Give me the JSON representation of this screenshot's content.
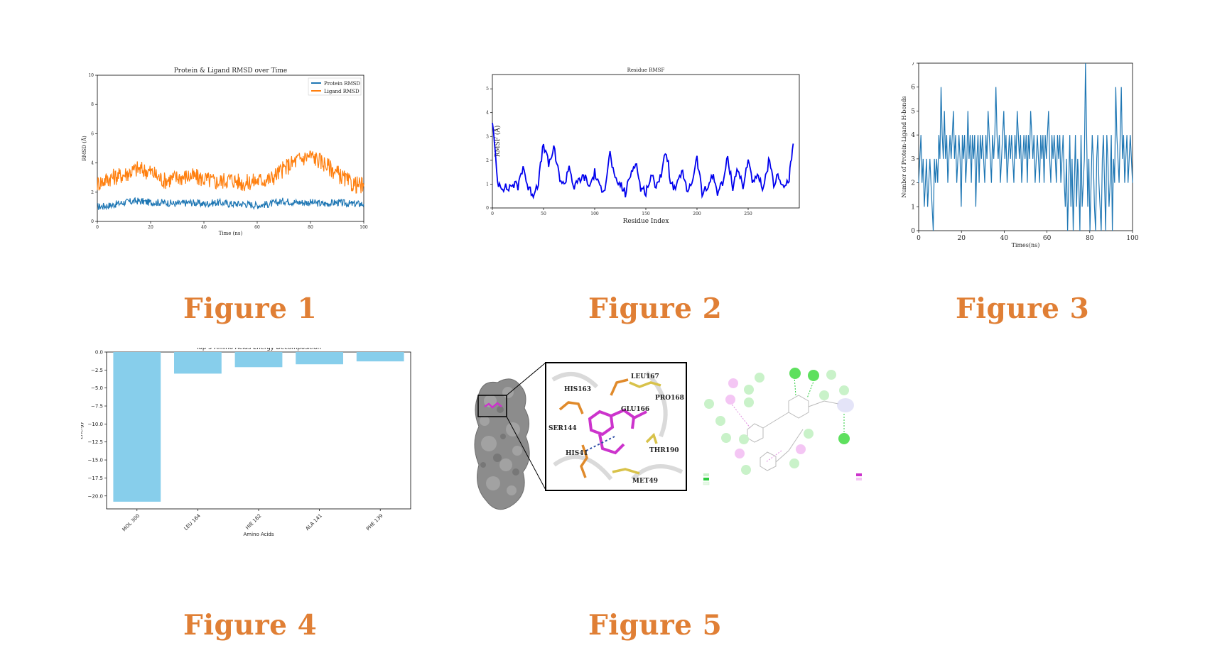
{
  "captions": [
    "Figure 1",
    "Figure 2",
    "Figure 3",
    "Figure 4",
    "Figure 5"
  ],
  "chart_data": [
    {
      "type": "line",
      "title": "Protein & Ligand RMSD over Time",
      "xlabel": "Time (ns)",
      "ylabel": "RMSD (Å)",
      "xlim": [
        0,
        100
      ],
      "ylim": [
        0,
        10
      ],
      "xticks": [
        0,
        20,
        40,
        60,
        80,
        100
      ],
      "yticks": [
        0,
        2,
        4,
        6,
        8,
        10
      ],
      "legend": "top-right",
      "x": [
        0,
        5,
        10,
        15,
        20,
        25,
        30,
        35,
        40,
        45,
        50,
        55,
        60,
        65,
        70,
        75,
        80,
        85,
        90,
        95,
        100
      ],
      "series": [
        {
          "name": "Protein RMSD",
          "color": "#1f77b4",
          "values": [
            1.0,
            1.1,
            1.3,
            1.4,
            1.3,
            1.3,
            1.2,
            1.3,
            1.2,
            1.3,
            1.2,
            1.2,
            1.1,
            1.2,
            1.4,
            1.3,
            1.3,
            1.2,
            1.3,
            1.2,
            1.2
          ]
        },
        {
          "name": "Ligand RMSD",
          "color": "#ff7f0e",
          "values": [
            2.6,
            3.0,
            3.2,
            3.6,
            3.4,
            2.8,
            3.0,
            3.1,
            2.9,
            2.7,
            2.9,
            2.6,
            2.8,
            2.9,
            3.6,
            4.2,
            4.5,
            4.0,
            3.3,
            2.6,
            2.4
          ]
        }
      ]
    },
    {
      "type": "line",
      "title": "Residue RMSF",
      "xlabel": "Residue Index",
      "ylabel": "RMSF (Å)",
      "xlim": [
        0,
        300
      ],
      "ylim": [
        0,
        5.6
      ],
      "xticks": [
        0,
        50,
        100,
        150,
        200,
        250
      ],
      "yticks": [
        0,
        1,
        2,
        3,
        4,
        5
      ],
      "x": [
        0,
        5,
        10,
        15,
        20,
        25,
        30,
        35,
        40,
        45,
        50,
        55,
        60,
        65,
        70,
        75,
        80,
        85,
        90,
        95,
        100,
        105,
        110,
        115,
        120,
        125,
        130,
        135,
        140,
        145,
        150,
        155,
        160,
        165,
        170,
        175,
        180,
        185,
        190,
        195,
        200,
        205,
        210,
        215,
        220,
        225,
        230,
        235,
        240,
        245,
        250,
        255,
        260,
        265,
        270,
        275,
        280,
        285,
        290,
        294
      ],
      "series": [
        {
          "name": "",
          "color": "#0000ee",
          "values": [
            3.7,
            1.1,
            0.9,
            0.8,
            1.0,
            0.9,
            1.8,
            0.8,
            0.6,
            1.1,
            2.7,
            1.8,
            2.5,
            1.4,
            0.9,
            1.8,
            0.8,
            1.2,
            1.3,
            0.9,
            1.5,
            0.8,
            0.9,
            2.3,
            1.1,
            1.0,
            0.6,
            1.4,
            2.0,
            0.8,
            0.7,
            1.3,
            1.0,
            1.4,
            2.4,
            0.9,
            0.8,
            1.6,
            0.7,
            1.1,
            2.1,
            0.6,
            0.8,
            1.4,
            0.7,
            1.0,
            2.1,
            0.9,
            1.7,
            0.8,
            2.1,
            1.0,
            1.3,
            0.7,
            2.0,
            1.0,
            1.4,
            0.8,
            1.2,
            2.7
          ]
        }
      ]
    },
    {
      "type": "line",
      "title": "",
      "xlabel": "Times(ns)",
      "ylabel": "Number of Protein-Ligand H-bonds",
      "xlim": [
        0,
        100
      ],
      "ylim": [
        0,
        7
      ],
      "xticks": [
        0,
        20,
        40,
        60,
        80,
        100
      ],
      "yticks": [
        0,
        1,
        2,
        3,
        4,
        5,
        6,
        7
      ],
      "series": [
        {
          "name": "",
          "color": "#1f77b4",
          "values": [
            2,
            3,
            4,
            2,
            3,
            1,
            2,
            3,
            1,
            2,
            3,
            2,
            1,
            0,
            3,
            2,
            3,
            2,
            4,
            3,
            6,
            4,
            3,
            5,
            3,
            4,
            2,
            3,
            4,
            3,
            4,
            5,
            3,
            4,
            2,
            3,
            4,
            3,
            1,
            4,
            3,
            4,
            2,
            3,
            5,
            3,
            4,
            2,
            4,
            3,
            4,
            1,
            3,
            4,
            2,
            4,
            3,
            4,
            3,
            2,
            4,
            3,
            5,
            4,
            3,
            2,
            4,
            3,
            4,
            6,
            4,
            3,
            4,
            2,
            3,
            4,
            5,
            3,
            4,
            2,
            3,
            4,
            3,
            4,
            3,
            2,
            4,
            3,
            5,
            4,
            3,
            4,
            2,
            3,
            4,
            3,
            4,
            2,
            4,
            3,
            5,
            4,
            3,
            4,
            2,
            3,
            4,
            3,
            2,
            4,
            3,
            4,
            2,
            4,
            3,
            4,
            5,
            3,
            2,
            4,
            3,
            4,
            3,
            2,
            4,
            3,
            4,
            2,
            3,
            4,
            2,
            1,
            3,
            0,
            2,
            4,
            1,
            3,
            0,
            2,
            4,
            1,
            3,
            2,
            0,
            4,
            1,
            2,
            3,
            7,
            4,
            1,
            3,
            0,
            2,
            4,
            3,
            1,
            0,
            3,
            4,
            2,
            1,
            0,
            3,
            4,
            2,
            0,
            4,
            3,
            1,
            2,
            4,
            0,
            3,
            2,
            6,
            4,
            3,
            2,
            4,
            6,
            3,
            4,
            2,
            3,
            4,
            2,
            3,
            4,
            3,
            2
          ]
        }
      ]
    },
    {
      "type": "bar",
      "title": "Top 5 Amino Acids Energy Decomposition",
      "xlabel": "Amino Acids",
      "ylabel": "Energy",
      "categories": [
        "MOL 300",
        "LEU 164",
        "HIE 162",
        "ALA 141",
        "PHE 139"
      ],
      "values": [
        -20.8,
        -3.0,
        -2.1,
        -1.7,
        -1.3
      ],
      "ylim": [
        -21.8,
        0
      ],
      "yticks": [
        0.0,
        -2.5,
        -5.0,
        -7.5,
        -10.0,
        -12.5,
        -15.0,
        -17.5,
        -20.0
      ],
      "ytick_labels": [
        "0.0",
        "−2.5",
        "−5.0",
        "−7.5",
        "−10.0",
        "−12.5",
        "−15.0",
        "−17.5",
        "−20.0"
      ],
      "color": "#87ceeb"
    }
  ],
  "figure5": {
    "residue_labels": [
      "LEU167",
      "HIS163",
      "PRO168",
      "GLU166",
      "SER144",
      "THR190",
      "HIS41",
      "MET49"
    ],
    "colors": {
      "ligand": "#cc33cc",
      "residue": "#e08a2b",
      "residue_alt": "#d8c24a",
      "surface": "#8c8c8c"
    }
  }
}
